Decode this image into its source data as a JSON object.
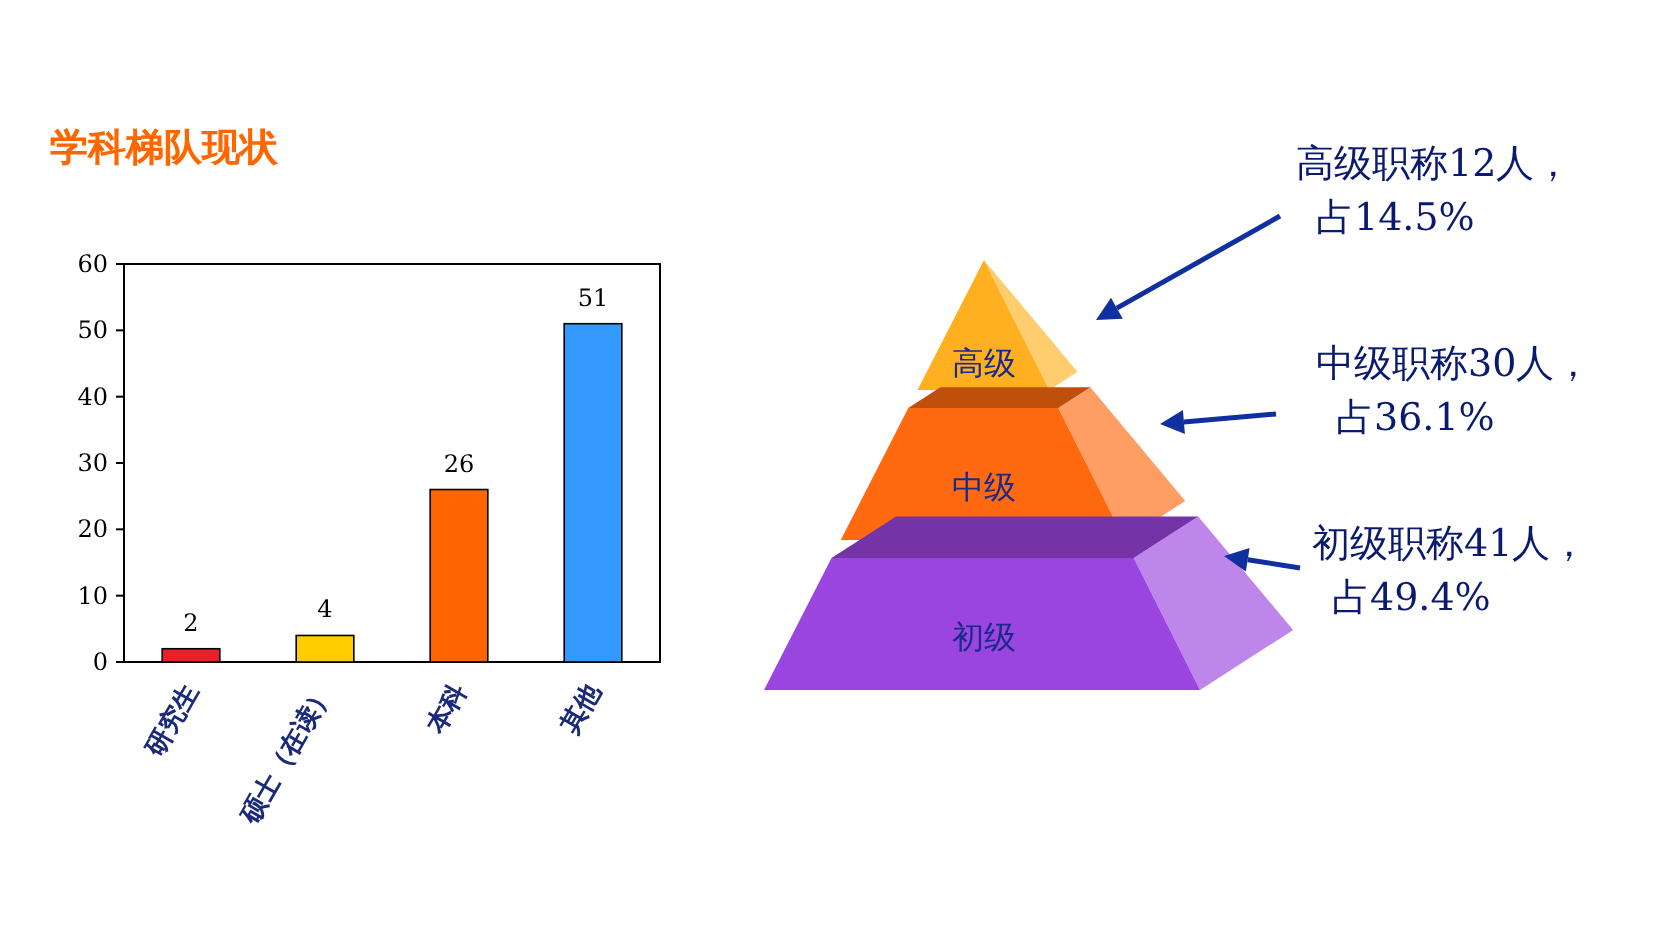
{
  "chart_data": [
    {
      "type": "bar",
      "title": "学科梯队现状",
      "categories": [
        "研究生",
        "硕士（在读）",
        "本科",
        "其他"
      ],
      "values": [
        2,
        4,
        26,
        51
      ],
      "colors": [
        "#e8202a",
        "#ffcc00",
        "#ff6600",
        "#3399ff"
      ],
      "ylim": [
        0,
        60
      ],
      "yticks": [
        0,
        10,
        20,
        30,
        40,
        50,
        60
      ],
      "data_labels": true
    },
    {
      "type": "other",
      "categories": [
        "高级",
        "中级",
        "初级"
      ],
      "colors": [
        "#ffb020",
        "#ff6a10",
        "#9b45e0"
      ],
      "annotations": [
        "高级职称12人，占14.5%",
        "中级职称30人，占36.1%",
        "初级职称41人，占49.4%"
      ]
    }
  ]
}
